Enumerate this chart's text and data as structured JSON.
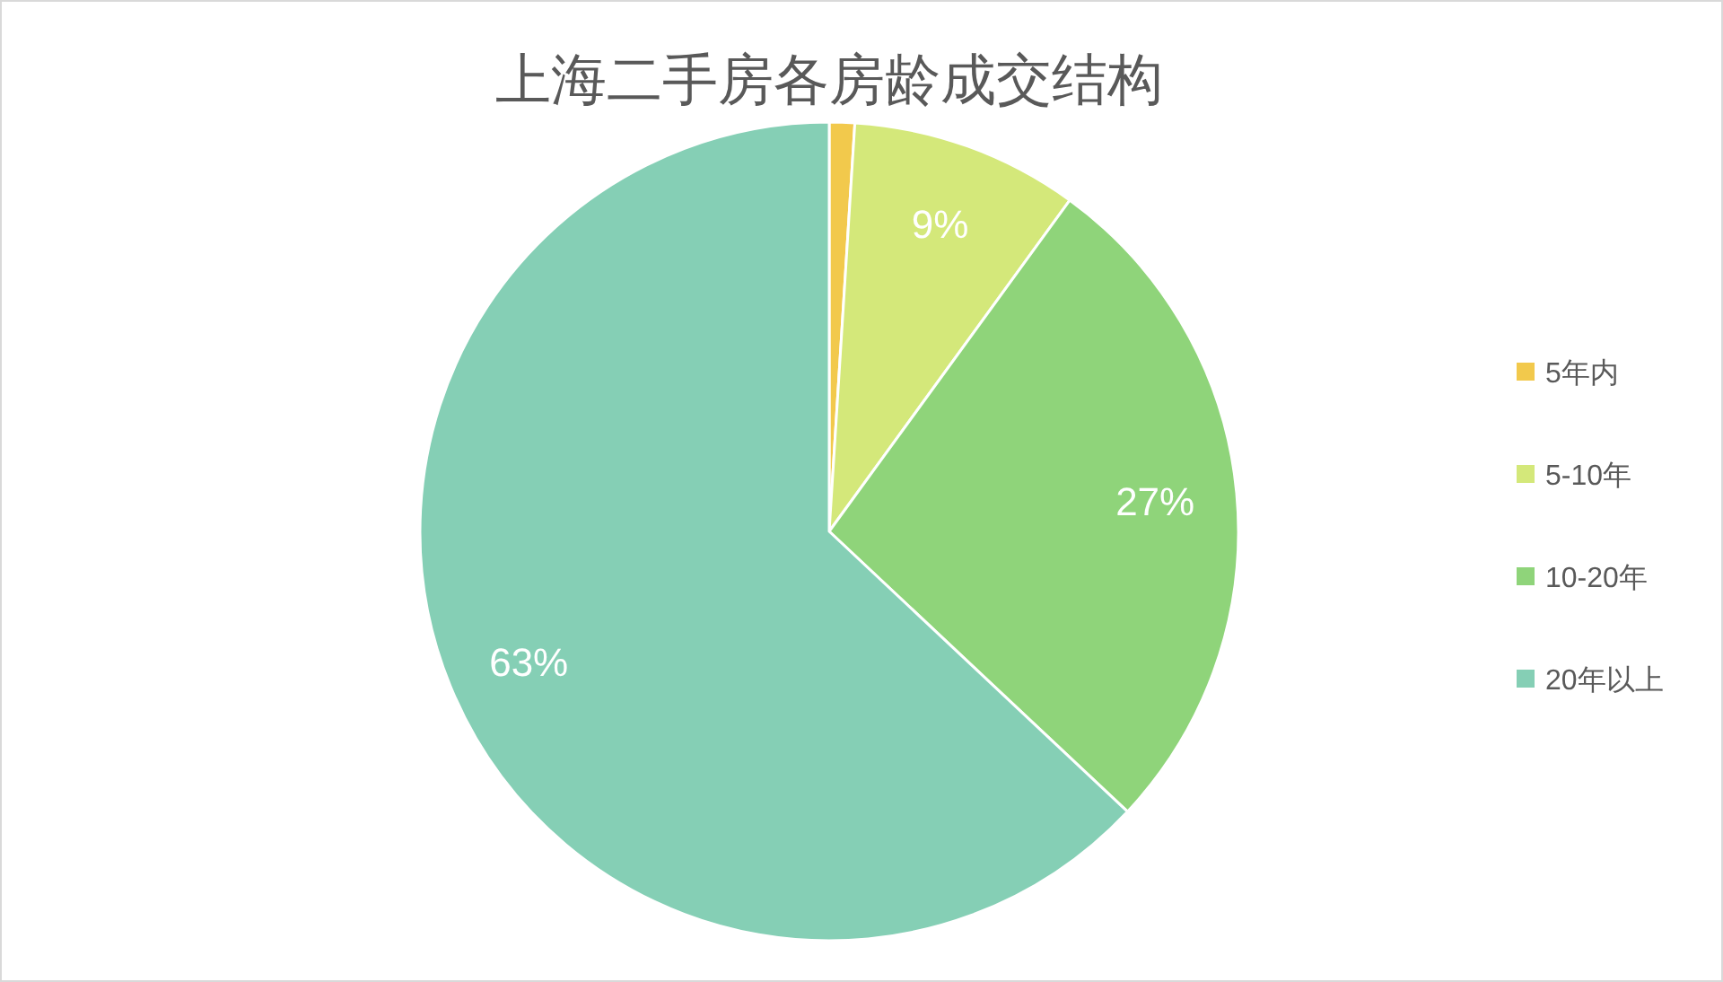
{
  "chart_data": {
    "type": "pie",
    "title": "上海二手房各房龄成交结构",
    "categories": [
      "5年内",
      "5-10年",
      "10-20年",
      "20年以上"
    ],
    "values": [
      1,
      9,
      27,
      63
    ],
    "colors": [
      "#f2c94c",
      "#d4e87a",
      "#8fd47a",
      "#85cfb5"
    ],
    "value_labels": [
      null,
      "9%",
      "27%",
      "63%"
    ],
    "legend": "right"
  }
}
